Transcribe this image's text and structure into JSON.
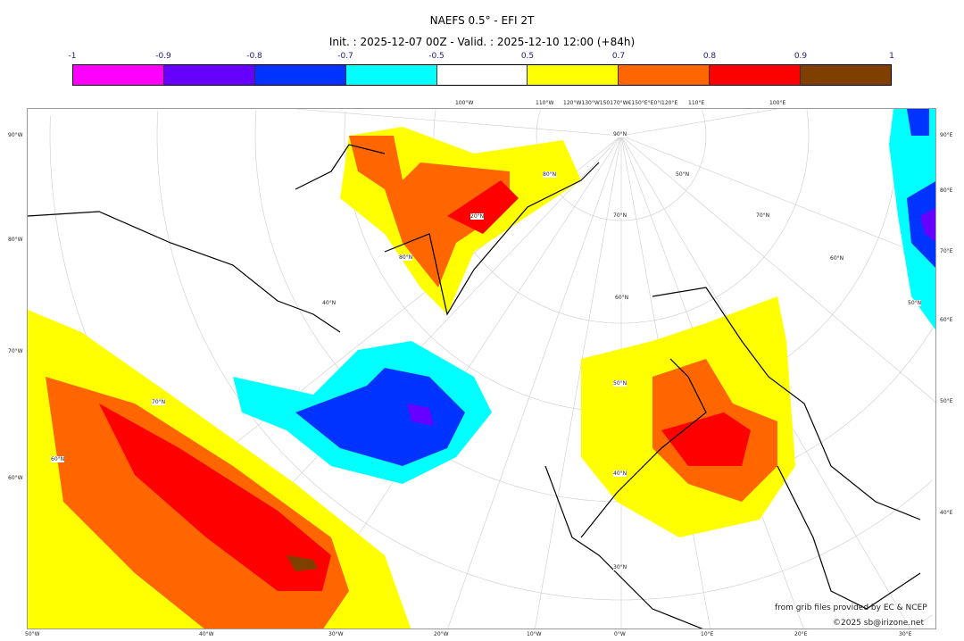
{
  "title": "NAEFS 0.5° - EFI 2T",
  "subtitle": "Init. : 2025-12-07 00Z - Valid. : 2025-12-10 12:00 (+84h)",
  "colorbar": {
    "ticks": [
      "-1",
      "-0.9",
      "-0.8",
      "-0.7",
      "-0.5",
      "0.5",
      "0.7",
      "0.8",
      "0.9",
      "1"
    ],
    "colors": [
      "#ff00ff",
      "#6600ff",
      "#0033ff",
      "#00ffff",
      "#ffffff",
      "#ffff00",
      "#ff6600",
      "#ff0000",
      "#7f3f00"
    ]
  },
  "map": {
    "top_labels": [
      "100°W",
      "110°W",
      "120°W130°W150170°W€150°E°E0°I120°E",
      "110°E",
      "100°E"
    ],
    "left_labels": [
      "90°W",
      "80°W",
      "70°W",
      "60°W"
    ],
    "right_labels": [
      "90°E",
      "80°E",
      "70°E",
      "60°E",
      "50°E",
      "40°E"
    ],
    "bottom_labels": [
      "50°W",
      "40°W",
      "30°W",
      "20°W",
      "10°W",
      "0°W",
      "10°E",
      "20°E",
      "30°E"
    ],
    "lat_labels": [
      "90°N",
      "80°N",
      "70°N",
      "60°N",
      "50°N",
      "40°N",
      "30°N",
      "20°N",
      "80°N",
      "70°N",
      "60°N",
      "50°N",
      "70°N",
      "60°N",
      "50°N",
      "40°N"
    ]
  },
  "credits": {
    "source": "from grib files provided by EC & NCEP",
    "copyright": "©2025 sb@irizone.net"
  }
}
